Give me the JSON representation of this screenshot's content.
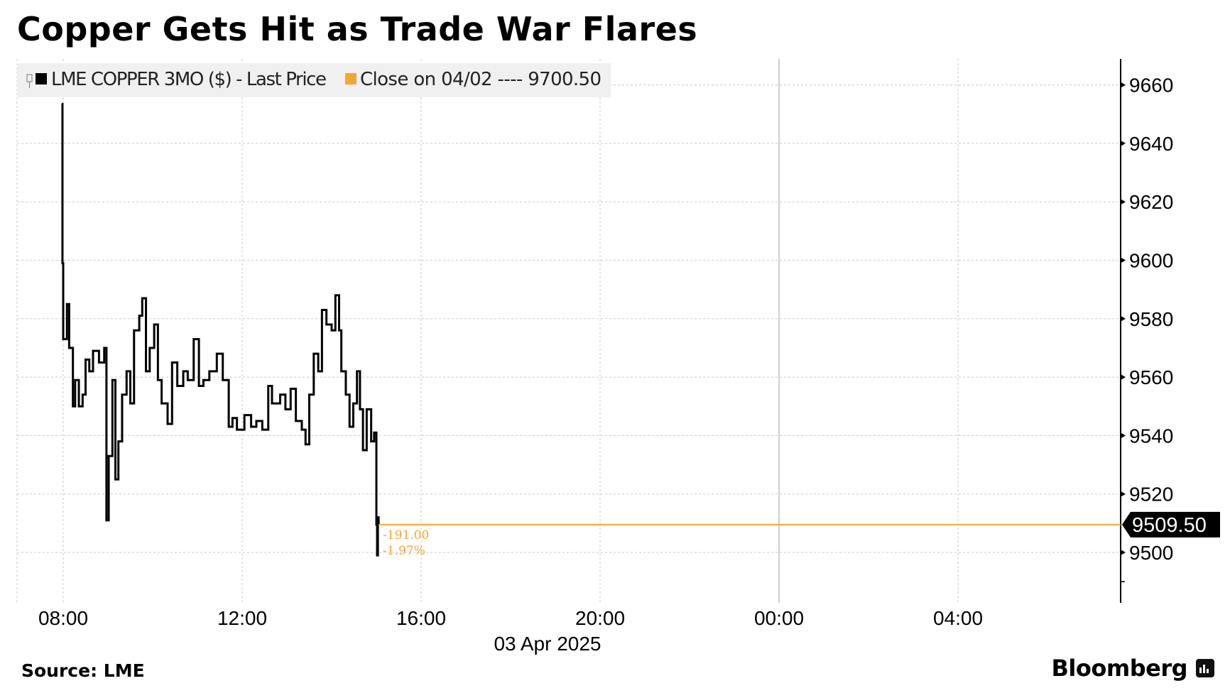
{
  "title": "Copper Gets Hit as Trade War Flares",
  "source": "Source: LME",
  "brand": "Bloomberg",
  "colors": {
    "price_line": "#000000",
    "close_line": "#f7a531",
    "legend_bg": "#f0f0f0",
    "last_tag_bg": "#000000"
  },
  "chart_data": {
    "type": "line",
    "step": true,
    "title": "",
    "xlabel": "03 Apr 2025",
    "ylabel": "",
    "x_ticks": [
      "08:00",
      "12:00",
      "16:00",
      "20:00",
      "00:00",
      "04:00"
    ],
    "y_ticks": [
      9500,
      9520,
      9540,
      9560,
      9580,
      9600,
      9620,
      9640,
      9660
    ],
    "ylim": [
      9487,
      9670
    ],
    "xlim": [
      "07:00",
      "07:45 (+1 day)"
    ],
    "grid": true,
    "y_axis_side": "right",
    "legend": {
      "placement": "top-left",
      "entries": [
        {
          "label": "LME COPPER 3MO ($) - Last Price",
          "color": "#000000"
        },
        {
          "label": "Close on 04/02 ---- 9700.50",
          "color": "#f7a531"
        }
      ]
    },
    "last_price": "9509.50",
    "change_labels": [
      "-191.00",
      "-1.97%"
    ],
    "series": [
      {
        "points": [
          [
            "07:58",
            9653.5
          ],
          [
            "07:59",
            9599
          ],
          [
            "08:00",
            9573
          ],
          [
            "08:05",
            9585
          ],
          [
            "08:08",
            9570
          ],
          [
            "08:13",
            9550
          ],
          [
            "08:16",
            9559
          ],
          [
            "08:21",
            9550
          ],
          [
            "08:26",
            9554
          ],
          [
            "08:30",
            9566
          ],
          [
            "08:35",
            9562
          ],
          [
            "08:40",
            9569
          ],
          [
            "08:48",
            9565
          ],
          [
            "08:55",
            9570
          ],
          [
            "08:58",
            9511
          ],
          [
            "09:01",
            9533
          ],
          [
            "09:06",
            9559
          ],
          [
            "09:10",
            9525
          ],
          [
            "09:14",
            9538
          ],
          [
            "09:19",
            9554
          ],
          [
            "09:25",
            9562
          ],
          [
            "09:30",
            9551
          ],
          [
            "09:35",
            9576
          ],
          [
            "09:42",
            9581
          ],
          [
            "09:46",
            9587
          ],
          [
            "09:51",
            9562
          ],
          [
            "09:56",
            9570
          ],
          [
            "10:02",
            9578
          ],
          [
            "10:07",
            9559
          ],
          [
            "10:12",
            9551
          ],
          [
            "10:20",
            9544
          ],
          [
            "10:26",
            9565
          ],
          [
            "10:33",
            9557
          ],
          [
            "10:41",
            9562
          ],
          [
            "10:47",
            9559
          ],
          [
            "10:55",
            9573
          ],
          [
            "11:02",
            9557
          ],
          [
            "11:08",
            9559
          ],
          [
            "11:16",
            9562
          ],
          [
            "11:26",
            9568
          ],
          [
            "11:34",
            9559
          ],
          [
            "11:42",
            9543
          ],
          [
            "11:47",
            9546
          ],
          [
            "11:53",
            9542
          ],
          [
            "12:03",
            9547
          ],
          [
            "12:12",
            9543
          ],
          [
            "12:19",
            9545
          ],
          [
            "12:27",
            9542
          ],
          [
            "12:35",
            9557
          ],
          [
            "12:40",
            9551
          ],
          [
            "12:51",
            9554
          ],
          [
            "12:58",
            9549
          ],
          [
            "13:05",
            9556
          ],
          [
            "13:12",
            9545
          ],
          [
            "13:20",
            9542
          ],
          [
            "13:25",
            9537
          ],
          [
            "13:30",
            9554
          ],
          [
            "13:36",
            9568
          ],
          [
            "13:42",
            9562
          ],
          [
            "13:47",
            9583
          ],
          [
            "13:53",
            9578
          ],
          [
            "14:00",
            9576
          ],
          [
            "14:05",
            9588
          ],
          [
            "14:10",
            9576
          ],
          [
            "14:13",
            9562
          ],
          [
            "14:19",
            9554
          ],
          [
            "14:24",
            9543
          ],
          [
            "14:29",
            9551
          ],
          [
            "14:34",
            9562
          ],
          [
            "14:38",
            9549
          ],
          [
            "14:42",
            9535
          ],
          [
            "14:47",
            9549
          ],
          [
            "14:53",
            9538
          ],
          [
            "14:57",
            9541
          ],
          [
            "15:00",
            9509.5
          ],
          [
            "15:01",
            9499
          ],
          [
            "15:02",
            9512
          ],
          [
            "15:03",
            9509.5
          ]
        ]
      }
    ]
  }
}
